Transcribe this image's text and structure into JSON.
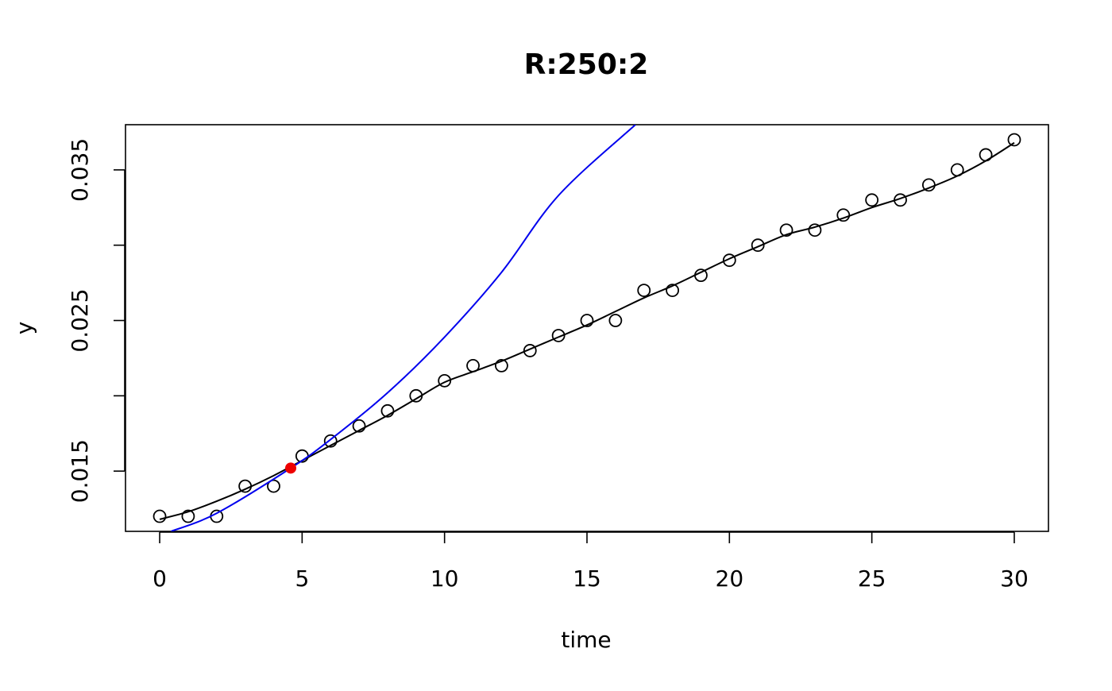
{
  "chart_data": {
    "type": "scatter",
    "title": "R:250:2",
    "xlabel": "time",
    "ylabel": "y",
    "xlim": [
      -1.2,
      31.2
    ],
    "ylim": [
      0.011,
      0.038
    ],
    "x_ticks": [
      0,
      5,
      10,
      15,
      20,
      25,
      30
    ],
    "x_tick_labels": [
      "0",
      "5",
      "10",
      "15",
      "20",
      "25",
      "30"
    ],
    "y_ticks": [
      0.015,
      0.02,
      0.025,
      0.03,
      0.035
    ],
    "y_tick_labels": [
      "0.015",
      "",
      "0.025",
      "",
      "0.035"
    ],
    "grid": false,
    "legend": "none",
    "series": [
      {
        "kind": "points",
        "marker": "open-circle",
        "color": "#000000",
        "x": [
          0,
          1,
          2,
          3,
          4,
          5,
          6,
          7,
          8,
          9,
          10,
          11,
          12,
          13,
          14,
          15,
          16,
          17,
          18,
          19,
          20,
          21,
          22,
          23,
          24,
          25,
          26,
          27,
          28,
          29,
          30
        ],
        "y": [
          0.012,
          0.012,
          0.012,
          0.014,
          0.014,
          0.016,
          0.017,
          0.018,
          0.019,
          0.02,
          0.021,
          0.022,
          0.022,
          0.023,
          0.024,
          0.025,
          0.025,
          0.027,
          0.027,
          0.028,
          0.029,
          0.03,
          0.031,
          0.031,
          0.032,
          0.033,
          0.033,
          0.034,
          0.035,
          0.036,
          0.037
        ]
      },
      {
        "kind": "line",
        "color": "#000000",
        "x": [
          0,
          1,
          2,
          3,
          4,
          5,
          6,
          7,
          8,
          9,
          10,
          11,
          12,
          13,
          14,
          15,
          16,
          17,
          18,
          19,
          20,
          21,
          22,
          23,
          24,
          25,
          26,
          27,
          28,
          29,
          30
        ],
        "y": [
          0.0118,
          0.0123,
          0.013,
          0.0138,
          0.0147,
          0.0157,
          0.0167,
          0.0177,
          0.0187,
          0.0198,
          0.0209,
          0.0216,
          0.0223,
          0.0231,
          0.0239,
          0.0247,
          0.0256,
          0.0265,
          0.0273,
          0.0282,
          0.0291,
          0.0299,
          0.0307,
          0.0312,
          0.0318,
          0.0325,
          0.0331,
          0.0338,
          0.0346,
          0.0356,
          0.0368
        ]
      },
      {
        "kind": "line",
        "color": "#0000EE",
        "x": [
          0.4,
          2,
          4.6,
          6,
          8,
          10,
          12,
          14,
          16.7
        ],
        "y": [
          0.011,
          0.0122,
          0.0152,
          0.0171,
          0.0202,
          0.0239,
          0.0282,
          0.0333,
          0.038
        ]
      },
      {
        "kind": "points",
        "marker": "filled-circle",
        "color": "#EE0000",
        "x": [
          4.6
        ],
        "y": [
          0.0152
        ]
      }
    ]
  }
}
